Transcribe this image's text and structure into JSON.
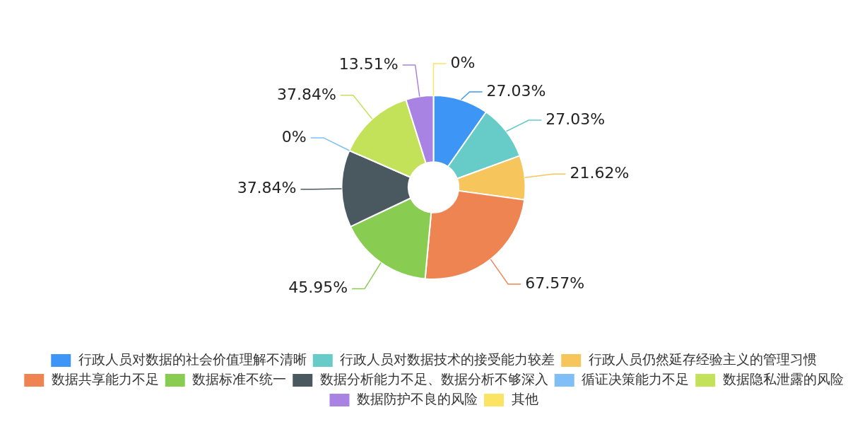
{
  "chart_data": {
    "type": "donut",
    "categories": [
      "行政人员对数据的社会价值理解不清晰",
      "行政人员对数据技术的接受能力较差",
      "行政人员仍然延存经验主义的管理习惯",
      "数据共享能力不足",
      "数据标准不统一",
      "数据分析能力不足、数据分析不够深入",
      "循证决策能力不足",
      "数据隐私泄露的风险",
      "数据防护不良的风险",
      "其他"
    ],
    "values": [
      27.03,
      27.03,
      21.62,
      67.57,
      45.95,
      37.84,
      0,
      37.84,
      13.51,
      0
    ],
    "value_labels": [
      "27.03%",
      "27.03%",
      "21.62%",
      "67.57%",
      "45.95%",
      "37.84%",
      "0%",
      "37.84%",
      "13.51%",
      "0%"
    ],
    "colors": [
      "#3d96f5",
      "#67cbc8",
      "#f6c55b",
      "#ef8453",
      "#89cc52",
      "#4a5960",
      "#7fbff8",
      "#c4e15a",
      "#a983e3",
      "#fbe464"
    ],
    "legend": "bottom"
  }
}
